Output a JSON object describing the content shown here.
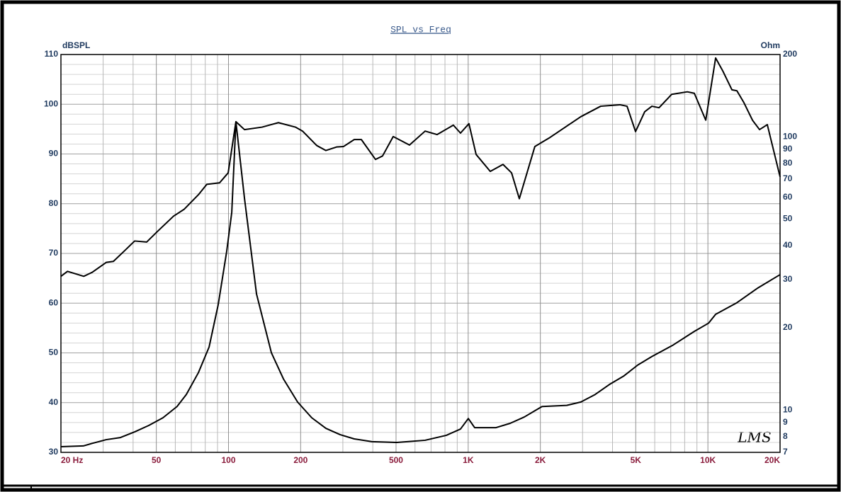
{
  "chart_data": {
    "type": "line",
    "title": "SPL vs Freq",
    "ylabel": "dBSPL",
    "y2label": "Ohm",
    "annotation": "LMS",
    "xscale": "log",
    "y2scale": "log",
    "grid": true,
    "xlim": [
      20,
      20000
    ],
    "xticks": [
      {
        "value": 20,
        "label": "20 Hz"
      },
      50,
      100,
      200,
      500,
      {
        "value": 1000,
        "label": "1K"
      },
      {
        "value": 2000,
        "label": "2K"
      },
      {
        "value": 5000,
        "label": "5K"
      },
      {
        "value": 10000,
        "label": "10K"
      },
      {
        "value": 20000,
        "label": "20K"
      }
    ],
    "x_minor_ticks": [
      30,
      40,
      60,
      70,
      80,
      90,
      300,
      400,
      600,
      700,
      800,
      900,
      3000,
      4000,
      6000,
      7000,
      8000,
      9000
    ],
    "ylim": [
      30,
      110
    ],
    "yticks": [
      30,
      40,
      50,
      60,
      70,
      80,
      90,
      100,
      110
    ],
    "y_minor_ticks": [
      32,
      34,
      36,
      38,
      42,
      44,
      46,
      48,
      52,
      54,
      56,
      58,
      62,
      64,
      66,
      68,
      72,
      74,
      76,
      78,
      82,
      84,
      86,
      88,
      92,
      94,
      96,
      98,
      102,
      104,
      106,
      108
    ],
    "y2lim": [
      7,
      200
    ],
    "y2ticks": [
      7,
      8,
      9,
      10,
      20,
      30,
      40,
      50,
      60,
      70,
      80,
      90,
      100,
      200
    ],
    "series": [
      {
        "color": "#000000",
        "x": [
          20,
          21.3,
          24.9,
          27,
          30.9,
          33.1,
          36.6,
          40.6,
          45.6,
          50.5,
          59,
          65.4,
          74.9,
          81.2,
          91.8,
          99.7,
          107.4,
          116.6,
          138.1,
          161.5,
          190.2,
          203.7,
          233.4,
          254.9,
          282.3,
          302.1,
          334.7,
          358.3,
          410.4,
          439.3,
          486.6,
          568.9,
          661.1,
          741.5,
          867,
          928.7,
          1007,
          1079,
          1236,
          1397,
          1517,
          1634,
          1897,
          2174,
          2577,
          2951,
          3570,
          4292,
          4599,
          4991,
          5450,
          5838,
          6254,
          7064,
          8207,
          8776,
          9795,
          10770,
          11535,
          12600,
          13214,
          14140,
          15340,
          16420,
          17690,
          20000
        ],
        "values": [
          65.4,
          66.4,
          65.4,
          66.2,
          68.2,
          68.4,
          70.4,
          72.5,
          72.3,
          74.4,
          77.5,
          78.9,
          81.8,
          83.9,
          84.2,
          86.2,
          96.5,
          94.9,
          95.4,
          96.3,
          95.4,
          94.6,
          91.7,
          90.7,
          91.4,
          91.5,
          92.9,
          92.9,
          88.9,
          89.6,
          93.5,
          91.8,
          94.6,
          93.9,
          95.8,
          94.2,
          96.1,
          89.9,
          86.5,
          87.9,
          86.2,
          81,
          91.5,
          93.2,
          95.6,
          97.5,
          99.6,
          99.9,
          99.6,
          94.5,
          98.5,
          99.6,
          99.3,
          102,
          102.5,
          102.2,
          96.8,
          109.3,
          106.7,
          102.9,
          102.7,
          100.3,
          96.8,
          94.9,
          95.9,
          85.4
        ]
      },
      {
        "color": "#000000",
        "axis": "y2",
        "x": [
          20,
          24.8,
          27,
          30.9,
          35.4,
          40.6,
          46.5,
          53.3,
          61,
          66.7,
          74.9,
          83,
          90.6,
          98.3,
          103.2,
          107.4,
          116.6,
          130.9,
          151,
          169.5,
          194.2,
          222.5,
          254.9,
          292,
          334.7,
          396.8,
          503.6,
          661,
          810.6,
          928.7,
          1001,
          1064,
          1306,
          1496,
          1714,
          2033,
          2577,
          2951,
          3387,
          3881,
          4445,
          5093,
          5838,
          7163,
          8776,
          10070,
          10770,
          13214,
          16187,
          20000
        ],
        "values": [
          7.34,
          7.39,
          7.55,
          7.79,
          7.93,
          8.32,
          8.78,
          9.37,
          10.3,
          11.4,
          13.7,
          17,
          24.3,
          38.1,
          52.9,
          113.5,
          59.6,
          26.6,
          16.2,
          13,
          10.7,
          9.37,
          8.57,
          8.13,
          7.84,
          7.66,
          7.61,
          7.75,
          8.08,
          8.52,
          9.31,
          8.62,
          8.62,
          8.94,
          9.43,
          10.3,
          10.4,
          10.7,
          11.4,
          12.4,
          13.3,
          14.6,
          15.7,
          17.3,
          19.4,
          20.8,
          22.4,
          24.7,
          28,
          31.3
        ]
      }
    ]
  }
}
